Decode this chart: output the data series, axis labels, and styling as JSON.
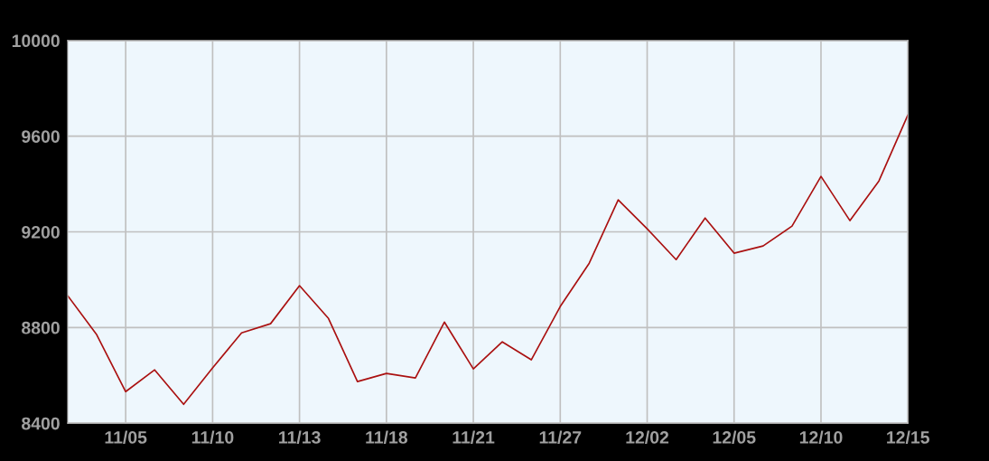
{
  "chart_data": {
    "type": "line",
    "categories": [
      null,
      null,
      "11/05",
      null,
      null,
      "11/10",
      null,
      null,
      "11/13",
      null,
      null,
      "11/18",
      null,
      null,
      "11/21",
      null,
      null,
      "11/27",
      null,
      null,
      "12/02",
      null,
      null,
      "12/05",
      null,
      null,
      "12/10",
      null,
      null,
      "12/15"
    ],
    "series": [
      {
        "color": "#aa1111",
        "values": [
          8933,
          8770,
          8532,
          8623,
          8479,
          8631,
          8778,
          8816,
          8975,
          8838,
          8574,
          8608,
          8589,
          8823,
          8627,
          8740,
          8665,
          8888,
          9069,
          9334,
          9213,
          9084,
          9258,
          9111,
          9141,
          9224,
          9432,
          9247,
          9413,
          9689
        ]
      }
    ],
    "ylim": [
      8400,
      10000
    ],
    "yticks": [
      8400,
      8800,
      9200,
      9600,
      10000
    ],
    "grid": true,
    "marker": "none",
    "line_style": "solid"
  }
}
